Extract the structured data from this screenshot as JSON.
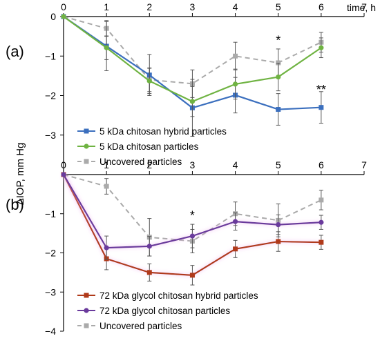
{
  "chart_data": [
    {
      "type": "line",
      "panel_label": "(a)",
      "xlabel": "time, h",
      "x": [
        0,
        1,
        2,
        3,
        4,
        5,
        6
      ],
      "x_ticks": [
        "0",
        "1",
        "2",
        "3",
        "4",
        "5",
        "6",
        "7"
      ],
      "xlim": [
        0,
        7
      ],
      "y_ticks": [
        "0",
        "−1",
        "−2",
        "−3"
      ],
      "ylim": [
        -4,
        0
      ],
      "series": [
        {
          "name": "5 kDa chitosan hybrid particles",
          "color": "#3b6fbe",
          "marker": "square",
          "dashed": false,
          "glow": false,
          "values": [
            0,
            -0.75,
            -1.48,
            -2.31,
            -1.99,
            -2.35,
            -2.3
          ],
          "errors": [
            0,
            0.62,
            0.52,
            0.72,
            0.45,
            0.4,
            0.4
          ]
        },
        {
          "name": "5 kDa chitosan particles",
          "color": "#6fb342",
          "marker": "circle",
          "dashed": false,
          "glow": false,
          "values": [
            0,
            -0.79,
            -1.63,
            -2.15,
            -1.71,
            -1.53,
            -0.79
          ],
          "errors": [
            0,
            0.3,
            0.32,
            0.38,
            0.38,
            0.35,
            0.25
          ]
        },
        {
          "name": "Uncovered particles",
          "color": "#aaaaaa",
          "marker": "square",
          "dashed": true,
          "glow": false,
          "values": [
            0,
            -0.3,
            -1.6,
            -1.7,
            -1.0,
            -1.17,
            -0.65
          ],
          "errors": [
            0,
            0.2,
            0.3,
            0.35,
            0.35,
            0.35,
            0.25
          ]
        }
      ],
      "annotations": [
        {
          "text": "*",
          "x": 5,
          "y": -0.6
        },
        {
          "text": "**",
          "x": 6,
          "y": -1.85
        }
      ],
      "legend_position": "lower-left"
    },
    {
      "type": "line",
      "panel_label": "(b)",
      "ylabel": "ΔIOP, mm Hg",
      "x": [
        0,
        1,
        2,
        3,
        4,
        5,
        6
      ],
      "x_ticks": [
        "0",
        "1",
        "2",
        "3",
        "4",
        "5",
        "6",
        "7"
      ],
      "xlim": [
        0,
        7
      ],
      "y_ticks": [
        "−1",
        "−2",
        "−3",
        "−4"
      ],
      "ylim": [
        -4,
        0
      ],
      "series": [
        {
          "name": "72 kDa glycol chitosan hybrid particles",
          "color": "#b03a1a",
          "marker": "square",
          "dashed": false,
          "glow": true,
          "values": [
            0,
            -2.15,
            -2.5,
            -2.57,
            -1.9,
            -1.71,
            -1.73
          ],
          "errors": [
            0,
            0.28,
            0.22,
            0.25,
            0.22,
            0.25,
            0.18
          ]
        },
        {
          "name": "72 kDa glycol chitosan particles",
          "color": "#6a3a9c",
          "marker": "circle",
          "dashed": false,
          "glow": true,
          "values": [
            0,
            -1.87,
            -1.83,
            -1.57,
            -1.2,
            -1.28,
            -1.22
          ],
          "errors": [
            0,
            0.3,
            0.25,
            0.3,
            0.22,
            0.25,
            0.18
          ]
        },
        {
          "name": "Uncovered particles",
          "color": "#aaaaaa",
          "marker": "square",
          "dashed": true,
          "glow": false,
          "values": [
            0,
            -0.3,
            -1.6,
            -1.7,
            -1.0,
            -1.17,
            -0.65
          ],
          "errors": [
            0,
            0.2,
            0.48,
            0.3,
            0.3,
            0.42,
            0.25
          ]
        }
      ],
      "annotations": [
        {
          "text": "*",
          "x": 3,
          "y": -1.05
        }
      ],
      "legend_position": "lower-left"
    }
  ]
}
